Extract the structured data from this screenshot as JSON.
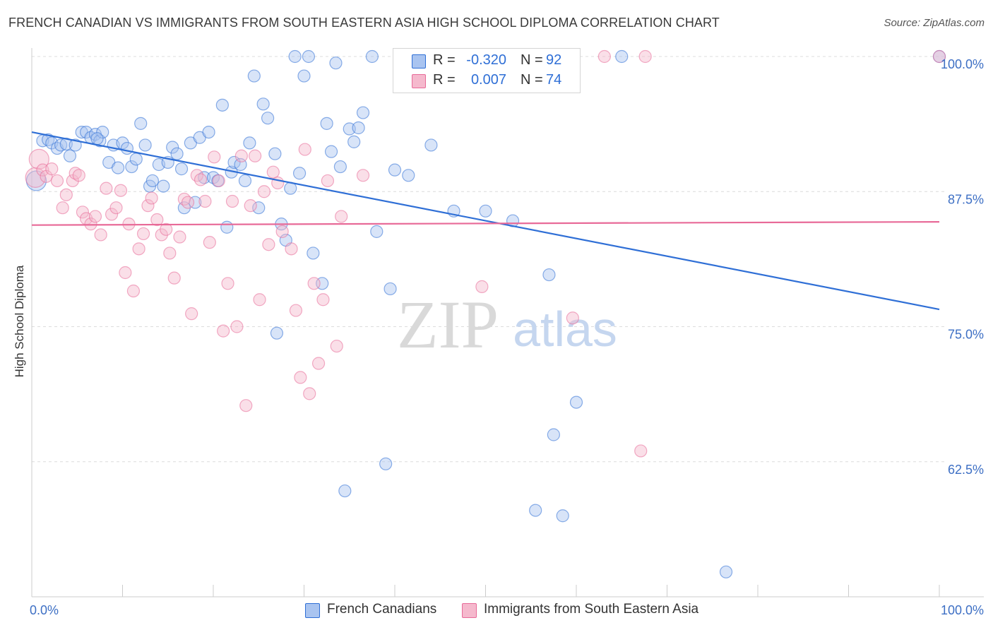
{
  "title": "FRENCH CANADIAN VS IMMIGRANTS FROM SOUTH EASTERN ASIA HIGH SCHOOL DIPLOMA CORRELATION CHART",
  "source": "Source: ZipAtlas.com",
  "watermark": {
    "zip": "ZIP",
    "atlas": "atlas"
  },
  "colors": {
    "blue": "#2f6fd6",
    "blue_fill": "#a9c4f0",
    "pink": "#e86a98",
    "pink_fill": "#f5b9cd",
    "grid": "#dddddd",
    "axis_text": "#3d6fc4"
  },
  "stats_legend": {
    "rows": [
      {
        "r_label": "R =",
        "r_value": "-0.320",
        "n_label": "N =",
        "n_value": "92"
      },
      {
        "r_label": "R =",
        "r_value": "0.007",
        "n_label": "N =",
        "n_value": "74"
      }
    ]
  },
  "chart_data": {
    "type": "scatter",
    "ylabel": "High School Diploma",
    "xlim": [
      0,
      100
    ],
    "ylim": [
      50,
      100
    ],
    "x_tick_labels": [
      "0.0%",
      "100.0%"
    ],
    "y_ticks": [
      62.5,
      75.0,
      87.5,
      100.0
    ],
    "y_tick_labels": [
      "62.5%",
      "75.0%",
      "87.5%",
      "100.0%"
    ],
    "grid": true,
    "legend_position": "bottom-center",
    "series": [
      {
        "name": "French Canadians",
        "color": "#2f6fd6",
        "trend": {
          "x": [
            0,
            100
          ],
          "y": [
            93.0,
            76.6
          ]
        },
        "points": [
          [
            0.5,
            88.5
          ],
          [
            1.2,
            92.2
          ],
          [
            1.8,
            92.3
          ],
          [
            2.2,
            92.0
          ],
          [
            2.8,
            91.5
          ],
          [
            3.2,
            91.8
          ],
          [
            3.8,
            91.9
          ],
          [
            4.2,
            90.8
          ],
          [
            4.8,
            91.8
          ],
          [
            5.5,
            93.0
          ],
          [
            6.0,
            93.0
          ],
          [
            6.5,
            92.5
          ],
          [
            7.0,
            92.8
          ],
          [
            7.5,
            92.2
          ],
          [
            7.8,
            93.0
          ],
          [
            8.5,
            90.2
          ],
          [
            9.0,
            91.8
          ],
          [
            9.5,
            89.7
          ],
          [
            10.0,
            92.0
          ],
          [
            10.5,
            91.5
          ],
          [
            11.0,
            89.8
          ],
          [
            11.5,
            90.5
          ],
          [
            12.0,
            93.8
          ],
          [
            12.5,
            91.8
          ],
          [
            13.0,
            88.0
          ],
          [
            13.3,
            88.5
          ],
          [
            14.0,
            90.0
          ],
          [
            14.5,
            88.0
          ],
          [
            15.0,
            90.2
          ],
          [
            15.5,
            91.6
          ],
          [
            16.0,
            91.0
          ],
          [
            16.5,
            89.6
          ],
          [
            16.8,
            86.0
          ],
          [
            17.5,
            92.0
          ],
          [
            18.0,
            86.5
          ],
          [
            18.5,
            92.5
          ],
          [
            19.0,
            88.8
          ],
          [
            19.5,
            93.0
          ],
          [
            20.0,
            88.8
          ],
          [
            20.5,
            88.5
          ],
          [
            21.0,
            95.5
          ],
          [
            21.5,
            84.2
          ],
          [
            22.0,
            89.3
          ],
          [
            22.3,
            90.2
          ],
          [
            23.0,
            90.0
          ],
          [
            23.5,
            88.5
          ],
          [
            24.0,
            92.0
          ],
          [
            24.5,
            98.2
          ],
          [
            25.0,
            86.0
          ],
          [
            25.5,
            95.6
          ],
          [
            26.0,
            94.3
          ],
          [
            26.8,
            91.0
          ],
          [
            27.5,
            84.5
          ],
          [
            28.0,
            83.0
          ],
          [
            28.5,
            87.8
          ],
          [
            29.0,
            100.0
          ],
          [
            29.5,
            89.2
          ],
          [
            30.0,
            98.2
          ],
          [
            30.5,
            100.0
          ],
          [
            31.0,
            81.8
          ],
          [
            32.0,
            79.0
          ],
          [
            32.5,
            93.8
          ],
          [
            33.0,
            91.2
          ],
          [
            33.5,
            99.4
          ],
          [
            34.0,
            89.8
          ],
          [
            35.0,
            93.3
          ],
          [
            35.5,
            92.1
          ],
          [
            36.0,
            93.4
          ],
          [
            36.5,
            94.8
          ],
          [
            37.5,
            100.0
          ],
          [
            38.0,
            83.8
          ],
          [
            39.0,
            62.3
          ],
          [
            39.5,
            78.5
          ],
          [
            40.0,
            89.5
          ],
          [
            41.5,
            89.0
          ],
          [
            44.0,
            91.8
          ],
          [
            46.5,
            85.7
          ],
          [
            47.5,
            100.0
          ],
          [
            48.0,
            100.0
          ],
          [
            50.0,
            85.7
          ],
          [
            53.0,
            84.8
          ],
          [
            55.5,
            58.0
          ],
          [
            57.0,
            79.8
          ],
          [
            57.5,
            65.0
          ],
          [
            58.5,
            57.5
          ],
          [
            60.0,
            68.0
          ],
          [
            65.0,
            100.0
          ],
          [
            76.5,
            52.3
          ],
          [
            100.0,
            100.0
          ],
          [
            34.5,
            59.8
          ],
          [
            7.2,
            92.4
          ],
          [
            27.0,
            74.4
          ]
        ]
      },
      {
        "name": "Immigrants from South Eastern Asia",
        "color": "#e86a98",
        "trend": {
          "x": [
            0,
            100
          ],
          "y": [
            84.4,
            84.7
          ]
        },
        "points": [
          [
            0.4,
            88.8
          ],
          [
            0.8,
            90.5
          ],
          [
            1.2,
            89.5
          ],
          [
            1.6,
            88.9
          ],
          [
            2.2,
            89.6
          ],
          [
            2.8,
            88.5
          ],
          [
            3.4,
            86.0
          ],
          [
            3.8,
            87.2
          ],
          [
            4.5,
            88.5
          ],
          [
            4.8,
            89.2
          ],
          [
            5.2,
            89.0
          ],
          [
            5.6,
            85.6
          ],
          [
            6.0,
            85.0
          ],
          [
            6.5,
            84.5
          ],
          [
            7.0,
            85.2
          ],
          [
            7.6,
            83.5
          ],
          [
            8.2,
            87.8
          ],
          [
            8.8,
            85.4
          ],
          [
            9.3,
            86.0
          ],
          [
            9.8,
            87.6
          ],
          [
            10.3,
            80.0
          ],
          [
            10.7,
            84.5
          ],
          [
            11.2,
            78.3
          ],
          [
            11.8,
            82.2
          ],
          [
            12.3,
            83.6
          ],
          [
            12.8,
            86.2
          ],
          [
            13.2,
            86.9
          ],
          [
            13.8,
            84.9
          ],
          [
            14.3,
            83.5
          ],
          [
            14.8,
            84.0
          ],
          [
            15.2,
            81.8
          ],
          [
            15.7,
            79.5
          ],
          [
            16.3,
            83.3
          ],
          [
            16.8,
            86.8
          ],
          [
            17.2,
            86.5
          ],
          [
            17.6,
            76.2
          ],
          [
            18.2,
            89.0
          ],
          [
            18.6,
            88.6
          ],
          [
            19.1,
            86.6
          ],
          [
            19.6,
            82.8
          ],
          [
            20.1,
            90.7
          ],
          [
            20.6,
            88.5
          ],
          [
            21.1,
            74.6
          ],
          [
            21.6,
            79.0
          ],
          [
            22.1,
            86.6
          ],
          [
            22.6,
            75.0
          ],
          [
            23.1,
            90.8
          ],
          [
            23.6,
            67.7
          ],
          [
            24.1,
            86.2
          ],
          [
            24.6,
            90.8
          ],
          [
            25.1,
            77.5
          ],
          [
            25.6,
            87.5
          ],
          [
            26.1,
            82.6
          ],
          [
            26.6,
            89.3
          ],
          [
            27.1,
            88.3
          ],
          [
            27.6,
            83.8
          ],
          [
            28.6,
            82.2
          ],
          [
            29.1,
            76.5
          ],
          [
            29.6,
            70.3
          ],
          [
            30.1,
            91.4
          ],
          [
            30.6,
            68.8
          ],
          [
            31.1,
            79.0
          ],
          [
            31.6,
            71.6
          ],
          [
            32.1,
            77.5
          ],
          [
            32.6,
            88.5
          ],
          [
            33.6,
            73.2
          ],
          [
            34.1,
            85.2
          ],
          [
            36.5,
            89.0
          ],
          [
            49.6,
            78.7
          ],
          [
            59.6,
            75.8
          ],
          [
            63.1,
            100.0
          ],
          [
            67.1,
            63.5
          ],
          [
            67.6,
            100.0
          ],
          [
            100.0,
            100.0
          ]
        ]
      }
    ]
  }
}
